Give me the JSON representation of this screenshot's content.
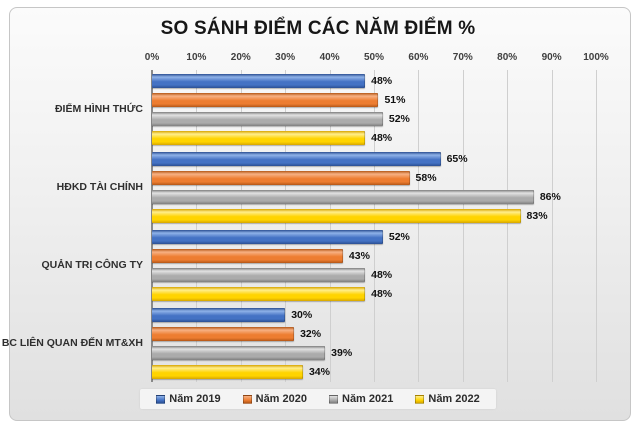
{
  "chart_data": {
    "type": "bar",
    "orientation": "horizontal",
    "title": "SO SÁNH ĐIỂM CÁC NĂM ĐIỂM %",
    "categories": [
      "ĐIỂM HÌNH THỨC",
      "HĐKD TÀI CHÍNH",
      "QUẢN TRỊ CÔNG TY",
      "BC LIÊN QUAN ĐẾN MT&XH"
    ],
    "series": [
      {
        "name": "Năm 2019",
        "color": "#4472C4",
        "color_light": "#8FB2E8",
        "color_dark": "#2B4F93",
        "values": [
          48,
          65,
          52,
          30
        ]
      },
      {
        "name": "Năm 2020",
        "color": "#ED7D31",
        "color_light": "#F7B183",
        "color_dark": "#B45717",
        "values": [
          51,
          58,
          43,
          32
        ]
      },
      {
        "name": "Năm 2021",
        "color": "#ABABAB",
        "color_light": "#E2E2E2",
        "color_dark": "#7E7E7E",
        "values": [
          52,
          86,
          48,
          39
        ]
      },
      {
        "name": "Năm 2022",
        "color": "#FFD400",
        "color_light": "#FFEE8C",
        "color_dark": "#D7A500",
        "values": [
          48,
          83,
          48,
          34
        ]
      }
    ],
    "value_suffix": "%",
    "x_ticks": [
      "0%",
      "10%",
      "20%",
      "30%",
      "40%",
      "50%",
      "60%",
      "70%",
      "80%",
      "90%",
      "100%"
    ],
    "xlim": [
      0,
      100
    ],
    "grid": true,
    "data_labels": true,
    "legend_position": "bottom"
  }
}
